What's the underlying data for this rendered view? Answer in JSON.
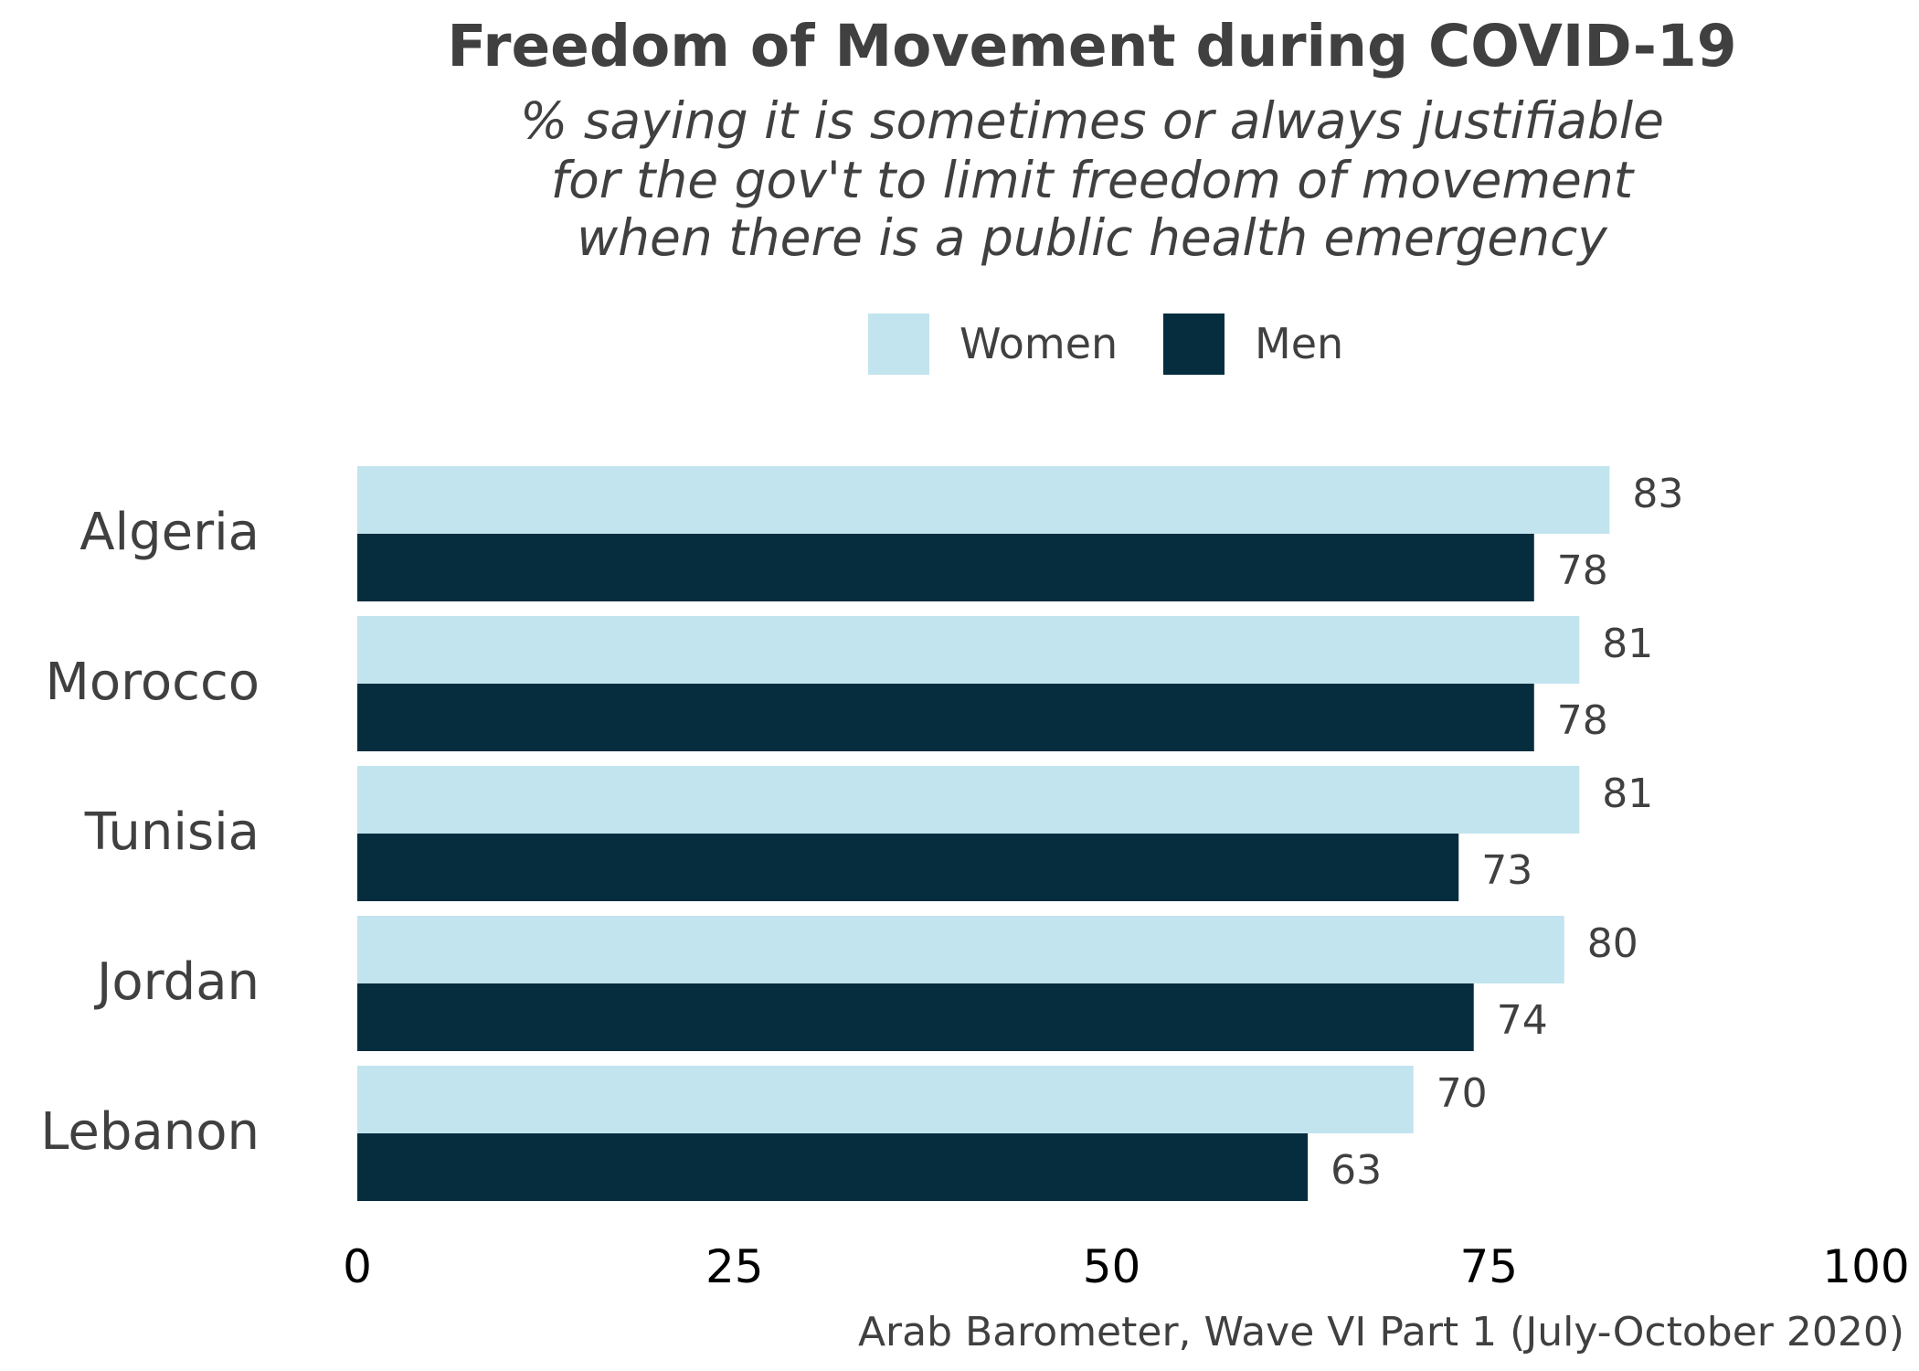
{
  "chart_data": {
    "type": "bar",
    "orientation": "horizontal",
    "title": "Freedom of Movement during COVID-19",
    "subtitle": [
      "% saying it is sometimes or always justifiable",
      "for the gov't to limit freedom of movement",
      "when there is a public health emergency"
    ],
    "categories": [
      "Algeria",
      "Morocco",
      "Tunisia",
      "Jordan",
      "Lebanon"
    ],
    "series": [
      {
        "name": "Women",
        "color": "#c2e4ee",
        "values": [
          83,
          81,
          81,
          80,
          70
        ]
      },
      {
        "name": "Men",
        "color": "#062d3e",
        "values": [
          78,
          78,
          73,
          74,
          63
        ]
      }
    ],
    "xlim": [
      0,
      100
    ],
    "xticks": [
      0,
      25,
      50,
      75,
      100
    ],
    "legend_position": "top",
    "grid": false,
    "caption": "Arab Barometer, Wave VI Part 1 (July-October 2020)"
  }
}
